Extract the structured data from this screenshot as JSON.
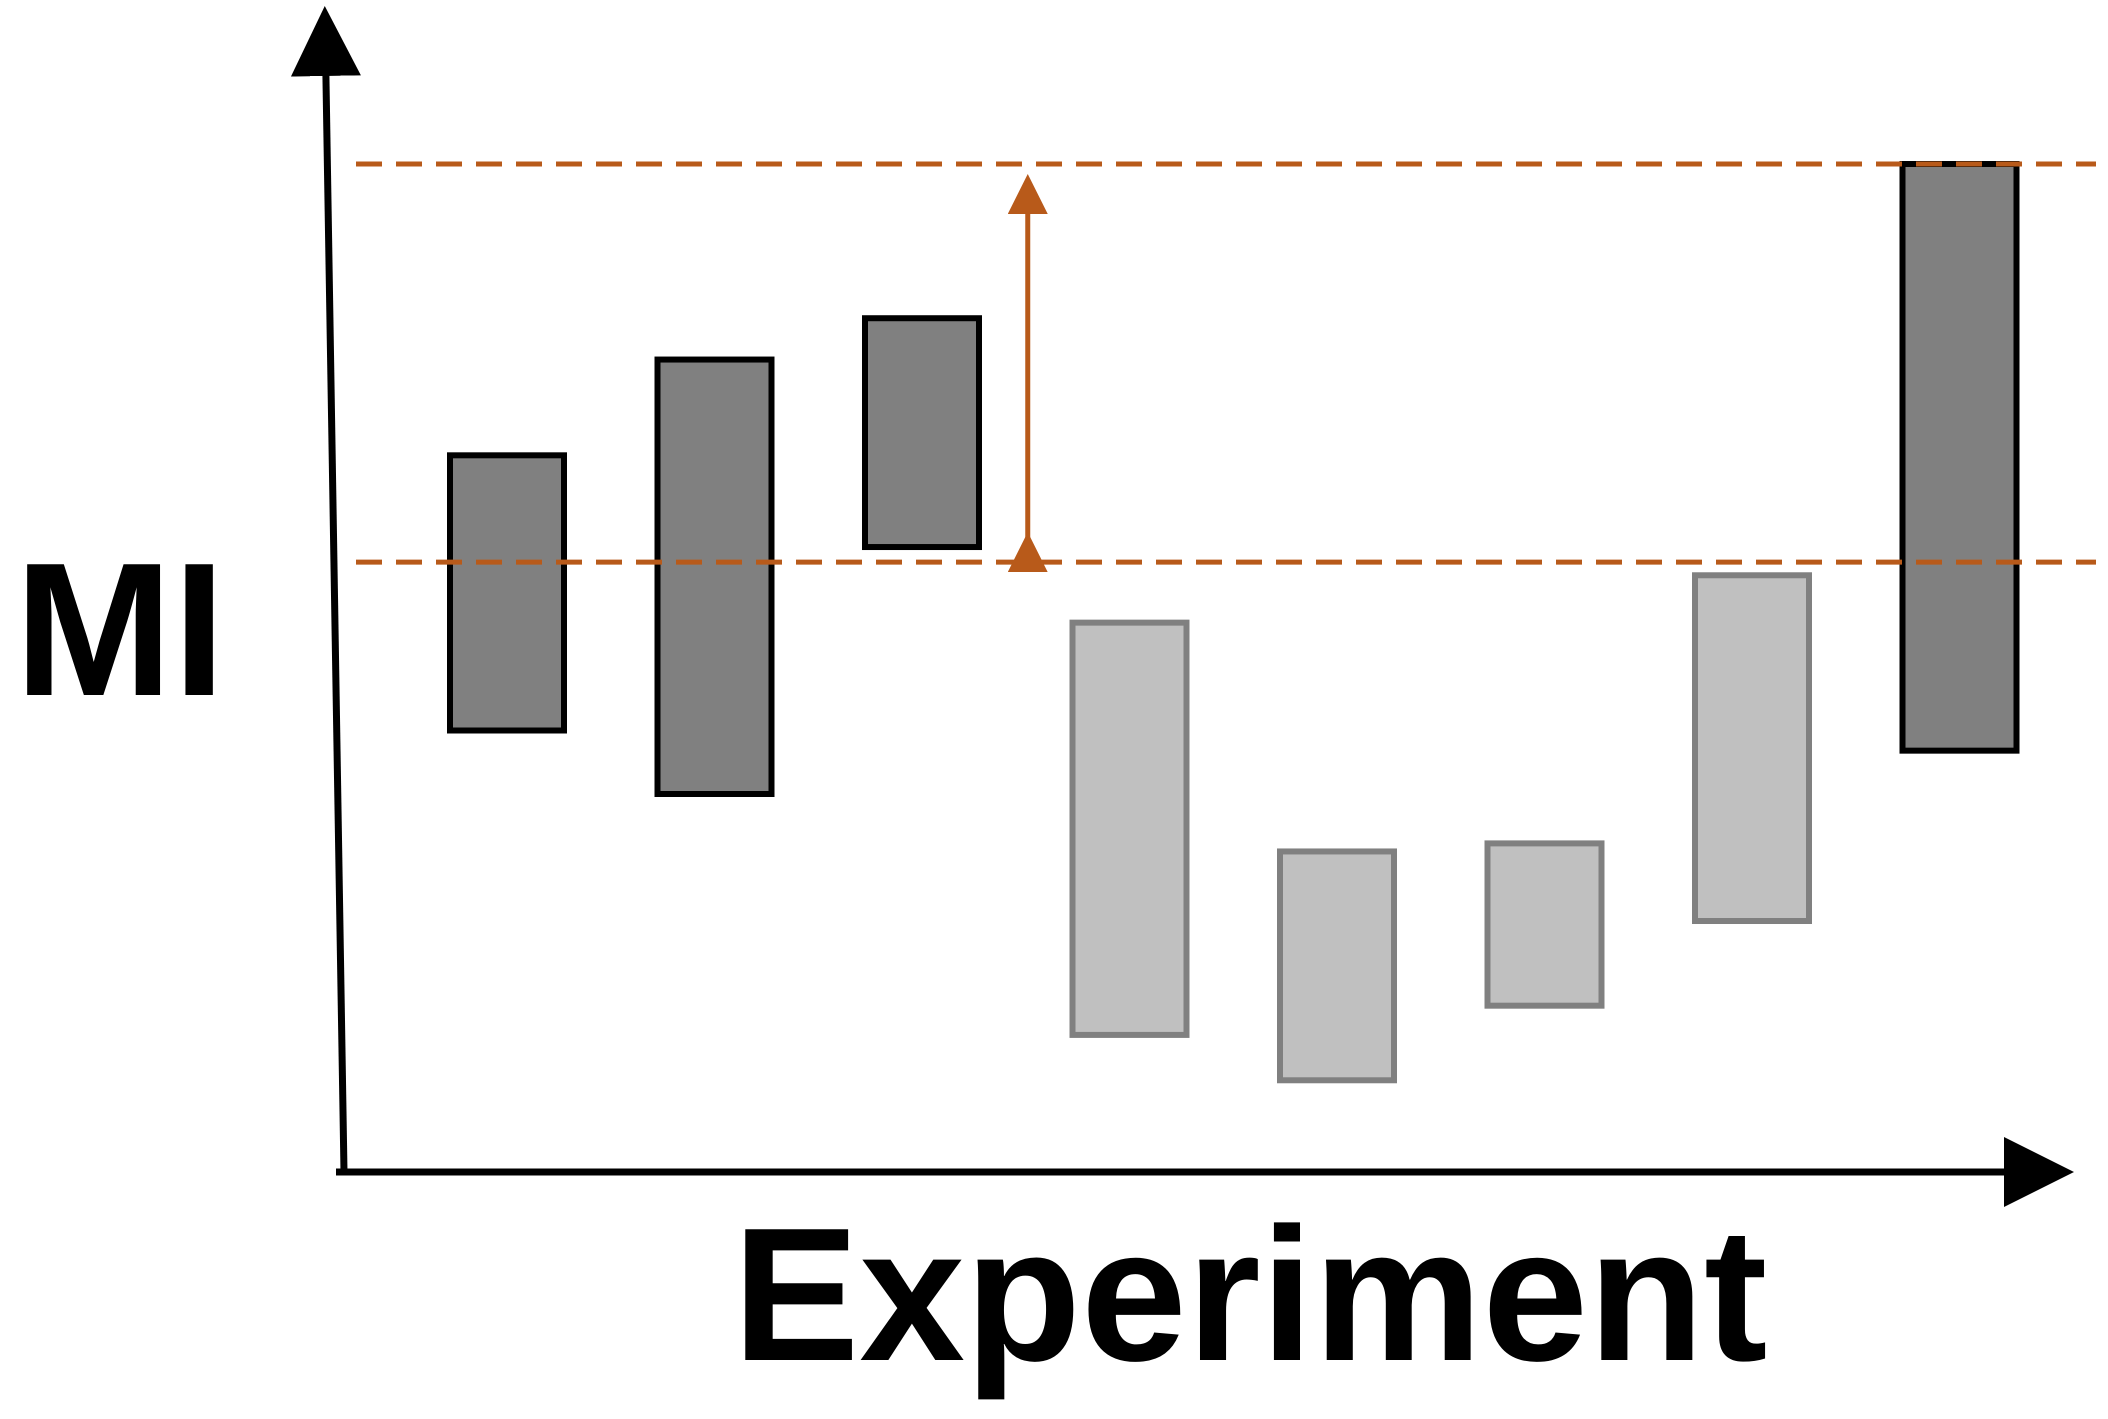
{
  "chart_data": {
    "type": "floating-bar",
    "title": "",
    "xlabel": "Experiment",
    "ylabel": "MI",
    "ylim": [
      0,
      100
    ],
    "grid": false,
    "legend": "none",
    "bars": [
      {
        "low": 43.8,
        "high": 71.1,
        "group": "dark"
      },
      {
        "low": 37.5,
        "high": 80.6,
        "group": "dark"
      },
      {
        "low": 62.0,
        "high": 84.7,
        "group": "dark"
      },
      {
        "low": 13.6,
        "high": 54.5,
        "group": "light"
      },
      {
        "low": 9.1,
        "high": 31.8,
        "group": "light"
      },
      {
        "low": 16.5,
        "high": 32.6,
        "group": "light"
      },
      {
        "low": 24.9,
        "high": 59.2,
        "group": "light"
      },
      {
        "low": 41.8,
        "high": 100,
        "group": "dark"
      }
    ],
    "reference_lines": [
      {
        "y": 100,
        "style": "dashed"
      },
      {
        "y": 60.5,
        "style": "dashed"
      }
    ],
    "annotation_arrow": {
      "x_after_bar": 3,
      "from": 60.5,
      "to": 100
    },
    "colors": {
      "dark_fill": "#808080",
      "dark_stroke": "#000000",
      "light_fill": "#c0c0c0",
      "light_stroke": "#808080",
      "reference": "#b85a1a",
      "axis": "#000000"
    }
  }
}
